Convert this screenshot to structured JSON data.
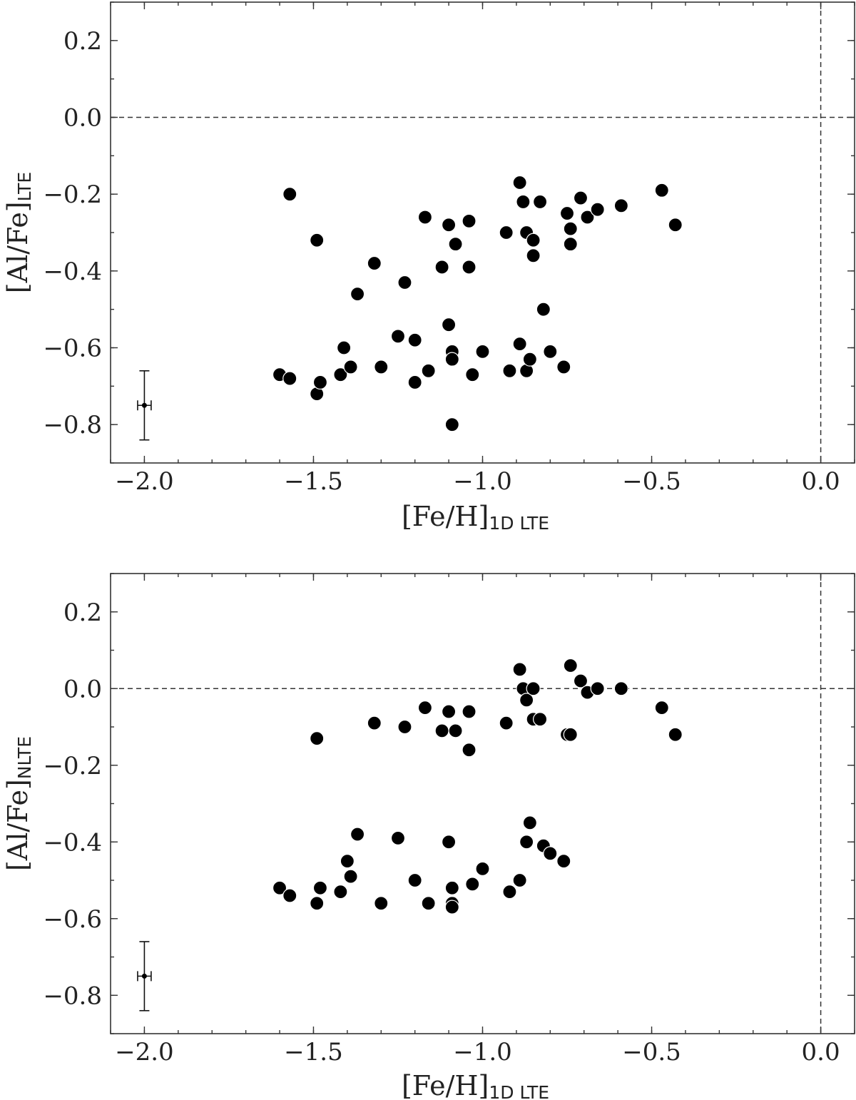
{
  "chart_data": [
    {
      "type": "scatter",
      "xlabel": {
        "main": "[Fe/H]",
        "sub": "1D LTE"
      },
      "ylabel": {
        "main": "[Al/Fe]",
        "sub": "LTE"
      },
      "xlim": [
        -2.1,
        0.1
      ],
      "ylim": [
        -0.9,
        0.3
      ],
      "xticks": [
        -2.0,
        -1.5,
        -1.0,
        -0.5,
        0.0
      ],
      "xtick_labels": [
        "−2.0",
        "−1.5",
        "−1.0",
        "−0.5",
        "0.0"
      ],
      "yticks": [
        0.2,
        0.0,
        -0.2,
        -0.4,
        -0.6,
        -0.8
      ],
      "ytick_labels": [
        "0.2",
        "0.0",
        "−0.2",
        "−0.4",
        "−0.6",
        "−0.8"
      ],
      "reference_lines": {
        "x": 0.0,
        "y": 0.0,
        "style": "dashed"
      },
      "grid": false,
      "error_bar": {
        "x": -2.0,
        "y": -0.75,
        "xerr": 0.02,
        "yerr": 0.09
      },
      "points": [
        [
          -1.57,
          -0.2
        ],
        [
          -1.49,
          -0.32
        ],
        [
          -1.37,
          -0.46
        ],
        [
          -1.32,
          -0.38
        ],
        [
          -1.23,
          -0.43
        ],
        [
          -1.17,
          -0.26
        ],
        [
          -1.12,
          -0.39
        ],
        [
          -1.1,
          -0.28
        ],
        [
          -1.08,
          -0.33
        ],
        [
          -1.04,
          -0.27
        ],
        [
          -1.04,
          -0.39
        ],
        [
          -0.93,
          -0.3
        ],
        [
          -0.89,
          -0.17
        ],
        [
          -0.88,
          -0.22
        ],
        [
          -0.87,
          -0.3
        ],
        [
          -0.85,
          -0.32
        ],
        [
          -0.85,
          -0.36
        ],
        [
          -0.83,
          -0.22
        ],
        [
          -0.75,
          -0.25
        ],
        [
          -0.74,
          -0.29
        ],
        [
          -0.74,
          -0.33
        ],
        [
          -0.71,
          -0.21
        ],
        [
          -0.69,
          -0.26
        ],
        [
          -0.66,
          -0.24
        ],
        [
          -0.59,
          -0.23
        ],
        [
          -0.47,
          -0.19
        ],
        [
          -0.43,
          -0.28
        ],
        [
          -0.82,
          -0.5
        ],
        [
          -1.6,
          -0.67
        ],
        [
          -1.57,
          -0.68
        ],
        [
          -1.49,
          -0.72
        ],
        [
          -1.48,
          -0.69
        ],
        [
          -1.42,
          -0.67
        ],
        [
          -1.41,
          -0.6
        ],
        [
          -1.39,
          -0.65
        ],
        [
          -1.3,
          -0.65
        ],
        [
          -1.25,
          -0.57
        ],
        [
          -1.2,
          -0.58
        ],
        [
          -1.2,
          -0.69
        ],
        [
          -1.16,
          -0.66
        ],
        [
          -1.1,
          -0.54
        ],
        [
          -1.09,
          -0.61
        ],
        [
          -1.09,
          -0.63
        ],
        [
          -1.09,
          -0.8
        ],
        [
          -1.03,
          -0.67
        ],
        [
          -1.0,
          -0.61
        ],
        [
          -0.92,
          -0.66
        ],
        [
          -0.89,
          -0.59
        ],
        [
          -0.87,
          -0.66
        ],
        [
          -0.86,
          -0.63
        ],
        [
          -0.8,
          -0.61
        ],
        [
          -0.76,
          -0.65
        ]
      ]
    },
    {
      "type": "scatter",
      "xlabel": {
        "main": "[Fe/H]",
        "sub": "1D LTE"
      },
      "ylabel": {
        "main": "[Al/Fe]",
        "sub": "NLTE"
      },
      "xlim": [
        -2.1,
        0.1
      ],
      "ylim": [
        -0.9,
        0.3
      ],
      "xticks": [
        -2.0,
        -1.5,
        -1.0,
        -0.5,
        0.0
      ],
      "xtick_labels": [
        "−2.0",
        "−1.5",
        "−1.0",
        "−0.5",
        "0.0"
      ],
      "yticks": [
        0.2,
        0.0,
        -0.2,
        -0.4,
        -0.6,
        -0.8
      ],
      "ytick_labels": [
        "0.2",
        "0.0",
        "−0.2",
        "−0.4",
        "−0.6",
        "−0.8"
      ],
      "reference_lines": {
        "x": 0.0,
        "y": 0.0,
        "style": "dashed"
      },
      "grid": false,
      "error_bar": {
        "x": -2.0,
        "y": -0.75,
        "xerr": 0.02,
        "yerr": 0.09
      },
      "points": [
        [
          -1.49,
          -0.13
        ],
        [
          -1.32,
          -0.09
        ],
        [
          -1.23,
          -0.1
        ],
        [
          -1.17,
          -0.05
        ],
        [
          -1.12,
          -0.11
        ],
        [
          -1.1,
          -0.06
        ],
        [
          -1.08,
          -0.11
        ],
        [
          -1.04,
          -0.06
        ],
        [
          -1.04,
          -0.16
        ],
        [
          -0.93,
          -0.09
        ],
        [
          -0.89,
          0.05
        ],
        [
          -0.88,
          0.0
        ],
        [
          -0.87,
          -0.03
        ],
        [
          -0.85,
          0.0
        ],
        [
          -0.85,
          -0.08
        ],
        [
          -0.83,
          -0.08
        ],
        [
          -0.75,
          -0.12
        ],
        [
          -0.74,
          -0.12
        ],
        [
          -0.74,
          0.06
        ],
        [
          -0.71,
          0.02
        ],
        [
          -0.69,
          -0.01
        ],
        [
          -0.66,
          0.0
        ],
        [
          -0.59,
          0.0
        ],
        [
          -0.47,
          -0.05
        ],
        [
          -0.43,
          -0.12
        ],
        [
          -1.6,
          -0.52
        ],
        [
          -1.57,
          -0.54
        ],
        [
          -1.49,
          -0.56
        ],
        [
          -1.48,
          -0.52
        ],
        [
          -1.42,
          -0.53
        ],
        [
          -1.4,
          -0.45
        ],
        [
          -1.39,
          -0.49
        ],
        [
          -1.37,
          -0.38
        ],
        [
          -1.3,
          -0.56
        ],
        [
          -1.25,
          -0.39
        ],
        [
          -1.2,
          -0.5
        ],
        [
          -1.16,
          -0.56
        ],
        [
          -1.1,
          -0.4
        ],
        [
          -1.09,
          -0.52
        ],
        [
          -1.09,
          -0.56
        ],
        [
          -1.09,
          -0.57
        ],
        [
          -1.03,
          -0.51
        ],
        [
          -1.0,
          -0.47
        ],
        [
          -0.92,
          -0.53
        ],
        [
          -0.89,
          -0.5
        ],
        [
          -0.87,
          -0.4
        ],
        [
          -0.86,
          -0.35
        ],
        [
          -0.82,
          -0.41
        ],
        [
          -0.8,
          -0.43
        ],
        [
          -0.76,
          -0.45
        ]
      ]
    }
  ]
}
